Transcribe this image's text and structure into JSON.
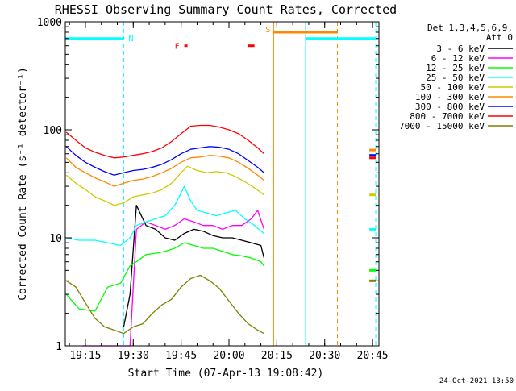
{
  "chart_data": {
    "type": "line",
    "title": "RHESSI Observing Summary Count Rates, Corrected",
    "xlabel": "Start Time (07-Apr-13 19:08:42)",
    "ylabel": "Corrected Count Rate (s⁻¹ detector⁻¹)",
    "xlim": [
      "19:08:42",
      "20:47:00"
    ],
    "ylim": [
      1,
      1000
    ],
    "yscale": "log",
    "x_ticks": [
      "19:15",
      "19:30",
      "19:45",
      "20:00",
      "20:15",
      "20:30",
      "20:45"
    ],
    "y_ticks": [
      "1",
      "10",
      "100",
      "1000"
    ],
    "legend_title": [
      "Det 1,3,4,5,6,9,",
      "Att 0"
    ],
    "legend_placement": "top-right",
    "footer_date": "24-Oct-2021 13:50",
    "series": [
      {
        "name": "3 - 6 keV",
        "color": "#000000",
        "x": [
          "19:27",
          "19:29",
          "19:31",
          "19:34",
          "19:37",
          "19:40",
          "19:43",
          "19:46",
          "19:49",
          "19:52",
          "19:55",
          "19:58",
          "20:01",
          "20:04",
          "20:07",
          "20:10",
          "20:11"
        ],
        "y": [
          1.5,
          3.0,
          20,
          13,
          12,
          10,
          9.5,
          11,
          12,
          11.5,
          10.5,
          10,
          10,
          9.5,
          9,
          8.5,
          6.5
        ]
      },
      {
        "name": "6 - 12 keV",
        "color": "#ff00ff",
        "x": [
          "19:14",
          "19:18",
          "19:22",
          "19:26",
          "19:29",
          "19:31",
          "19:34",
          "19:37",
          "19:40",
          "19:43",
          "19:46",
          "19:49",
          "19:52",
          "19:55",
          "19:58",
          "20:01",
          "20:04",
          "20:07",
          "20:09",
          "20:11"
        ],
        "y": [
          1.0,
          1.0,
          1.0,
          1.0,
          1.0,
          12,
          14,
          13,
          12,
          13,
          15,
          14,
          13,
          13,
          12,
          13,
          13,
          15,
          18,
          12
        ]
      },
      {
        "name": "12 - 25 keV",
        "color": "#00ff00",
        "x": [
          "19:09",
          "19:13",
          "19:18",
          "19:22",
          "19:26",
          "19:29",
          "19:31",
          "19:34",
          "19:37",
          "19:40",
          "19:43",
          "19:46",
          "19:49",
          "19:52",
          "19:55",
          "19:58",
          "20:01",
          "20:04",
          "20:07",
          "20:10",
          "20:11"
        ],
        "y": [
          3.0,
          2.2,
          2.1,
          3.5,
          3.8,
          5.5,
          6.0,
          7.0,
          7.2,
          7.5,
          8.0,
          9.0,
          8.5,
          8.0,
          8.0,
          7.5,
          7.0,
          6.8,
          6.5,
          6.0,
          5.5
        ]
      },
      {
        "name": "25 - 50 keV",
        "color": "#00ffff",
        "x": [
          "19:09",
          "19:13",
          "19:18",
          "19:22",
          "19:26",
          "19:29",
          "19:31",
          "19:34",
          "19:37",
          "19:40",
          "19:43",
          "19:45",
          "19:46",
          "19:48",
          "19:50",
          "19:53",
          "19:56",
          "19:59",
          "20:02",
          "20:05",
          "20:08",
          "20:11"
        ],
        "y": [
          10,
          9.5,
          9.5,
          9.0,
          8.5,
          10,
          13,
          14,
          15,
          16,
          20,
          26,
          30,
          22,
          18,
          17,
          16,
          17,
          18,
          15,
          13,
          11
        ]
      },
      {
        "name": "50 - 100 keV",
        "color": "#cccc00",
        "x": [
          "19:09",
          "19:12",
          "19:15",
          "19:18",
          "19:21",
          "19:24",
          "19:27",
          "19:30",
          "19:33",
          "19:36",
          "19:39",
          "19:42",
          "19:45",
          "19:47",
          "19:50",
          "19:53",
          "19:56",
          "19:59",
          "20:02",
          "20:05",
          "20:08",
          "20:11"
        ],
        "y": [
          38,
          32,
          28,
          24,
          22,
          20,
          21,
          24,
          25,
          26,
          28,
          32,
          40,
          46,
          42,
          40,
          41,
          40,
          37,
          33,
          29,
          25
        ]
      },
      {
        "name": "100 - 300 keV",
        "color": "#ff8800",
        "x": [
          "19:09",
          "19:12",
          "19:15",
          "19:18",
          "19:21",
          "19:24",
          "19:27",
          "19:30",
          "19:33",
          "19:36",
          "19:39",
          "19:42",
          "19:45",
          "19:48",
          "19:51",
          "19:54",
          "19:57",
          "20:00",
          "20:03",
          "20:06",
          "20:09",
          "20:11"
        ],
        "y": [
          55,
          45,
          40,
          36,
          33,
          30,
          32,
          34,
          35,
          37,
          40,
          44,
          50,
          55,
          56,
          58,
          57,
          55,
          50,
          44,
          38,
          34
        ]
      },
      {
        "name": "300 - 800 keV",
        "color": "#0000ff",
        "x": [
          "19:09",
          "19:12",
          "19:15",
          "19:18",
          "19:21",
          "19:24",
          "19:27",
          "19:30",
          "19:33",
          "19:36",
          "19:39",
          "19:42",
          "19:45",
          "19:48",
          "19:51",
          "19:54",
          "19:57",
          "20:00",
          "20:03",
          "20:06",
          "20:09",
          "20:11"
        ],
        "y": [
          70,
          58,
          50,
          45,
          41,
          38,
          40,
          42,
          43,
          45,
          48,
          53,
          60,
          66,
          68,
          70,
          69,
          66,
          60,
          52,
          45,
          40
        ]
      },
      {
        "name": "800 - 7000 keV",
        "color": "#ff0000",
        "x": [
          "19:09",
          "19:12",
          "19:15",
          "19:18",
          "19:21",
          "19:24",
          "19:27",
          "19:30",
          "19:33",
          "19:36",
          "19:39",
          "19:42",
          "19:45",
          "19:48",
          "19:51",
          "19:54",
          "19:57",
          "20:00",
          "20:03",
          "20:06",
          "20:09",
          "20:11"
        ],
        "y": [
          95,
          80,
          68,
          62,
          58,
          55,
          56,
          58,
          60,
          63,
          68,
          78,
          92,
          108,
          110,
          110,
          106,
          100,
          92,
          80,
          68,
          60
        ]
      },
      {
        "name": "7000 - 15000 keV",
        "color": "#808000",
        "x": [
          "19:09",
          "19:12",
          "19:15",
          "19:18",
          "19:21",
          "19:24",
          "19:27",
          "19:30",
          "19:33",
          "19:36",
          "19:39",
          "19:42",
          "19:45",
          "19:48",
          "19:51",
          "19:54",
          "19:57",
          "20:00",
          "20:03",
          "20:06",
          "20:09",
          "20:11"
        ],
        "y": [
          4.0,
          3.5,
          2.5,
          1.8,
          1.5,
          1.4,
          1.3,
          1.5,
          1.6,
          2.0,
          2.4,
          2.7,
          3.5,
          4.2,
          4.5,
          4.0,
          3.4,
          2.6,
          2.0,
          1.6,
          1.4,
          1.3
        ]
      }
    ],
    "post_gap_series": {
      "x": [
        "20:44",
        "20:46"
      ],
      "values": {
        "800 - 7000 keV": [
          55,
          55
        ],
        "300 - 800 keV": [
          58,
          58
        ],
        "100 - 300 keV": [
          65,
          65
        ],
        "50 - 100 keV": [
          25,
          25
        ],
        "25 - 50 keV": [
          12,
          12
        ],
        "12 - 25 keV": [
          5,
          5
        ],
        "7000 - 15000 keV": [
          4,
          4
        ]
      }
    },
    "night_bars": [
      {
        "label": "N",
        "x_start": "19:08:42",
        "x_end": "19:27",
        "y": 700,
        "color": "#00ffff"
      },
      {
        "label": "",
        "x_start": "20:24",
        "x_end": "20:46",
        "y": 700,
        "color": "#00ffff"
      }
    ],
    "saa_bar": {
      "label": "S",
      "x_start": "20:14",
      "x_end": "20:34",
      "y": 800,
      "color": "#ff8800"
    },
    "flare_marks": [
      {
        "label": "F",
        "x_start": "19:46",
        "x_end": "19:47",
        "y": 600,
        "color": "#ff0000"
      },
      {
        "label": "",
        "x_start": "20:06",
        "x_end": "20:08",
        "y": 600,
        "color": "#ff0000"
      }
    ],
    "vertical_lines": [
      {
        "x": "19:27",
        "color": "#00ffff",
        "style": "dashed"
      },
      {
        "x": "20:14",
        "color": "#ff8800",
        "style": "solid"
      },
      {
        "x": "20:24",
        "color": "#00ffff",
        "style": "solid"
      },
      {
        "x": "20:34",
        "color": "#ff8800",
        "style": "dashed"
      },
      {
        "x": "20:46",
        "color": "#00ffff",
        "style": "dashed"
      }
    ]
  }
}
